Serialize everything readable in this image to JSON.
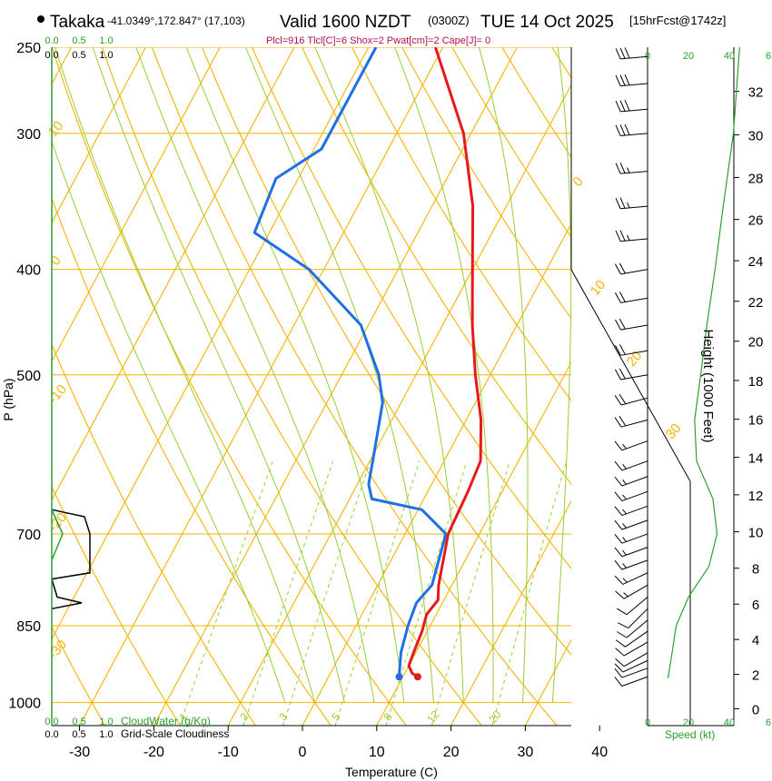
{
  "header": {
    "station": "Takaka",
    "coords": "-41.0349°,172.847° (17,103)",
    "valid": "Valid 1600 NZDT",
    "utc": "(0300Z)",
    "date": "TUE 14 Oct 2025",
    "forecast": "[15hrFcst@1742z]",
    "indices": "Plcl=916 Tlcl[C]=6 Shox=2 Pwat[cm]=2 Cape[J]= 0"
  },
  "axes": {
    "ylabel": "P (hPa)",
    "xlabel": "Temperature (C)",
    "height_label": "Height (1000 Feet)",
    "speed_label": "Speed (kt)",
    "cloudwater_label": "CloudWater (g/Kg)",
    "cloudiness_label": "Grid-Scale Cloudiness"
  },
  "colors": {
    "temperature": "#e41a1c",
    "dewpoint": "#1f6fe5",
    "isotherm": "#f5b400",
    "dry_adiabat": "#f5b400",
    "moist_adiabat": "#9acd32",
    "mixing_ratio": "#9acd32",
    "wind_profile": "#2ca02c",
    "cloudwater": "#2ca02c",
    "indices": "#b0105a"
  },
  "chart_data": {
    "type": "skew-t",
    "pressure_ticks": [
      250,
      300,
      400,
      500,
      700,
      850,
      1000
    ],
    "pressure_range": [
      250,
      1050
    ],
    "temp_ticks": [
      -30,
      -20,
      -10,
      0,
      10,
      20,
      30,
      40
    ],
    "temp_range_at_base": [
      -34,
      46
    ],
    "isotherm_labels": [
      {
        "t": 10,
        "p": 300,
        "label": "10"
      },
      {
        "t": 0,
        "p": 390,
        "label": "0"
      },
      {
        "t": -10,
        "p": 535,
        "label": "-10"
      },
      {
        "t": -20,
        "p": 685,
        "label": "-20"
      },
      {
        "t": -30,
        "p": 890,
        "label": "-30"
      },
      {
        "t": 0,
        "p": 348,
        "label": "0"
      },
      {
        "t": 10,
        "p": 425,
        "label": "10"
      },
      {
        "t": 20,
        "p": 492,
        "label": "20"
      },
      {
        "t": 30,
        "p": 570,
        "label": "30"
      }
    ],
    "mixing_ratio_labels": [
      "1",
      "2",
      "3",
      "5",
      "8",
      "12",
      "20"
    ],
    "height_ticks_kft": [
      0,
      2,
      4,
      6,
      8,
      10,
      12,
      14,
      16,
      18,
      20,
      22,
      24,
      26,
      28,
      30,
      32
    ],
    "speed_ticks": [
      "0",
      "20",
      "40",
      "6"
    ],
    "cloud_ticks": [
      "0.0",
      "0.5",
      "1.0"
    ],
    "temperature": [
      {
        "p": 947,
        "t": 12.0
      },
      {
        "p": 940,
        "t": 11.0
      },
      {
        "p": 925,
        "t": 10.0
      },
      {
        "p": 900,
        "t": 9.7
      },
      {
        "p": 860,
        "t": 9.3
      },
      {
        "p": 830,
        "t": 8.7
      },
      {
        "p": 805,
        "t": 9.2
      },
      {
        "p": 780,
        "t": 8.2
      },
      {
        "p": 700,
        "t": 5.8
      },
      {
        "p": 640,
        "t": 5.4
      },
      {
        "p": 600,
        "t": 4.9
      },
      {
        "p": 550,
        "t": 2.0
      },
      {
        "p": 500,
        "t": -2.0
      },
      {
        "p": 450,
        "t": -6.0
      },
      {
        "p": 400,
        "t": -10.0
      },
      {
        "p": 350,
        "t": -14.5
      },
      {
        "p": 300,
        "t": -21.0
      },
      {
        "p": 250,
        "t": -31.0
      }
    ],
    "dewpoint": [
      {
        "p": 947,
        "t": 9.5
      },
      {
        "p": 900,
        "t": 8.0
      },
      {
        "p": 850,
        "t": 7.0
      },
      {
        "p": 810,
        "t": 6.5
      },
      {
        "p": 780,
        "t": 7.3
      },
      {
        "p": 700,
        "t": 5.5
      },
      {
        "p": 665,
        "t": 0.5
      },
      {
        "p": 650,
        "t": -7.0
      },
      {
        "p": 630,
        "t": -8.5
      },
      {
        "p": 590,
        "t": -10.0
      },
      {
        "p": 530,
        "t": -12.5
      },
      {
        "p": 500,
        "t": -15.0
      },
      {
        "p": 450,
        "t": -21.0
      },
      {
        "p": 400,
        "t": -32.0
      },
      {
        "p": 370,
        "t": -42.0
      },
      {
        "p": 330,
        "t": -43.0
      },
      {
        "p": 310,
        "t": -39.0
      },
      {
        "p": 250,
        "t": -39.0
      }
    ],
    "winds": [
      {
        "p": 947,
        "dir": 250,
        "spd": 10
      },
      {
        "p": 930,
        "dir": 250,
        "spd": 10
      },
      {
        "p": 915,
        "dir": 245,
        "spd": 10
      },
      {
        "p": 900,
        "dir": 240,
        "spd": 10
      },
      {
        "p": 880,
        "dir": 240,
        "spd": 10
      },
      {
        "p": 860,
        "dir": 235,
        "spd": 10
      },
      {
        "p": 840,
        "dir": 230,
        "spd": 10
      },
      {
        "p": 820,
        "dir": 225,
        "spd": 10
      },
      {
        "p": 800,
        "dir": 230,
        "spd": 10
      },
      {
        "p": 780,
        "dir": 240,
        "spd": 15
      },
      {
        "p": 760,
        "dir": 245,
        "spd": 15
      },
      {
        "p": 740,
        "dir": 250,
        "spd": 15
      },
      {
        "p": 720,
        "dir": 250,
        "spd": 15
      },
      {
        "p": 700,
        "dir": 250,
        "spd": 15
      },
      {
        "p": 680,
        "dir": 250,
        "spd": 15
      },
      {
        "p": 660,
        "dir": 250,
        "spd": 15
      },
      {
        "p": 640,
        "dir": 250,
        "spd": 15
      },
      {
        "p": 620,
        "dir": 250,
        "spd": 15
      },
      {
        "p": 600,
        "dir": 250,
        "spd": 15
      },
      {
        "p": 575,
        "dir": 250,
        "spd": 15
      },
      {
        "p": 550,
        "dir": 255,
        "spd": 20
      },
      {
        "p": 525,
        "dir": 255,
        "spd": 20
      },
      {
        "p": 500,
        "dir": 260,
        "spd": 20
      },
      {
        "p": 475,
        "dir": 260,
        "spd": 20
      },
      {
        "p": 450,
        "dir": 260,
        "spd": 20
      },
      {
        "p": 425,
        "dir": 260,
        "spd": 20
      },
      {
        "p": 400,
        "dir": 260,
        "spd": 20
      },
      {
        "p": 375,
        "dir": 265,
        "spd": 25
      },
      {
        "p": 350,
        "dir": 265,
        "spd": 25
      },
      {
        "p": 325,
        "dir": 265,
        "spd": 25
      },
      {
        "p": 300,
        "dir": 265,
        "spd": 30
      },
      {
        "p": 285,
        "dir": 265,
        "spd": 30
      },
      {
        "p": 270,
        "dir": 265,
        "spd": 30
      },
      {
        "p": 255,
        "dir": 265,
        "spd": 30
      }
    ],
    "speed_profile": [
      {
        "p": 950,
        "kt": 10
      },
      {
        "p": 900,
        "kt": 12
      },
      {
        "p": 850,
        "kt": 14
      },
      {
        "p": 800,
        "kt": 20
      },
      {
        "p": 750,
        "kt": 30
      },
      {
        "p": 700,
        "kt": 34
      },
      {
        "p": 650,
        "kt": 32
      },
      {
        "p": 600,
        "kt": 24
      },
      {
        "p": 550,
        "kt": 23
      },
      {
        "p": 500,
        "kt": 26
      },
      {
        "p": 450,
        "kt": 29
      },
      {
        "p": 400,
        "kt": 33
      },
      {
        "p": 350,
        "kt": 37
      },
      {
        "p": 300,
        "kt": 42
      },
      {
        "p": 250,
        "kt": 45
      }
    ],
    "cloudiness": [
      {
        "p": 665,
        "v": 0.0
      },
      {
        "p": 675,
        "v": 0.6
      },
      {
        "p": 700,
        "v": 0.7
      },
      {
        "p": 760,
        "v": 0.7
      },
      {
        "p": 770,
        "v": 0.0
      },
      {
        "p": 800,
        "v": 0.1
      },
      {
        "p": 810,
        "v": 0.55
      },
      {
        "p": 820,
        "v": 0.0
      }
    ],
    "cloudwater": [
      {
        "p": 665,
        "v": 0.0
      },
      {
        "p": 700,
        "v": 0.2
      },
      {
        "p": 740,
        "v": 0.0
      }
    ]
  }
}
